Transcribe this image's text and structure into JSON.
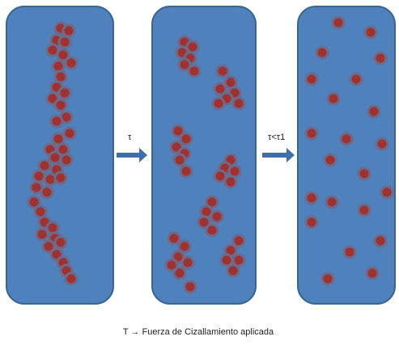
{
  "arrows": [
    {
      "label": "τ"
    },
    {
      "label": "τ<τ1"
    }
  ],
  "caption": "T → Fuerza de Cizallamiento  aplicada"
}
